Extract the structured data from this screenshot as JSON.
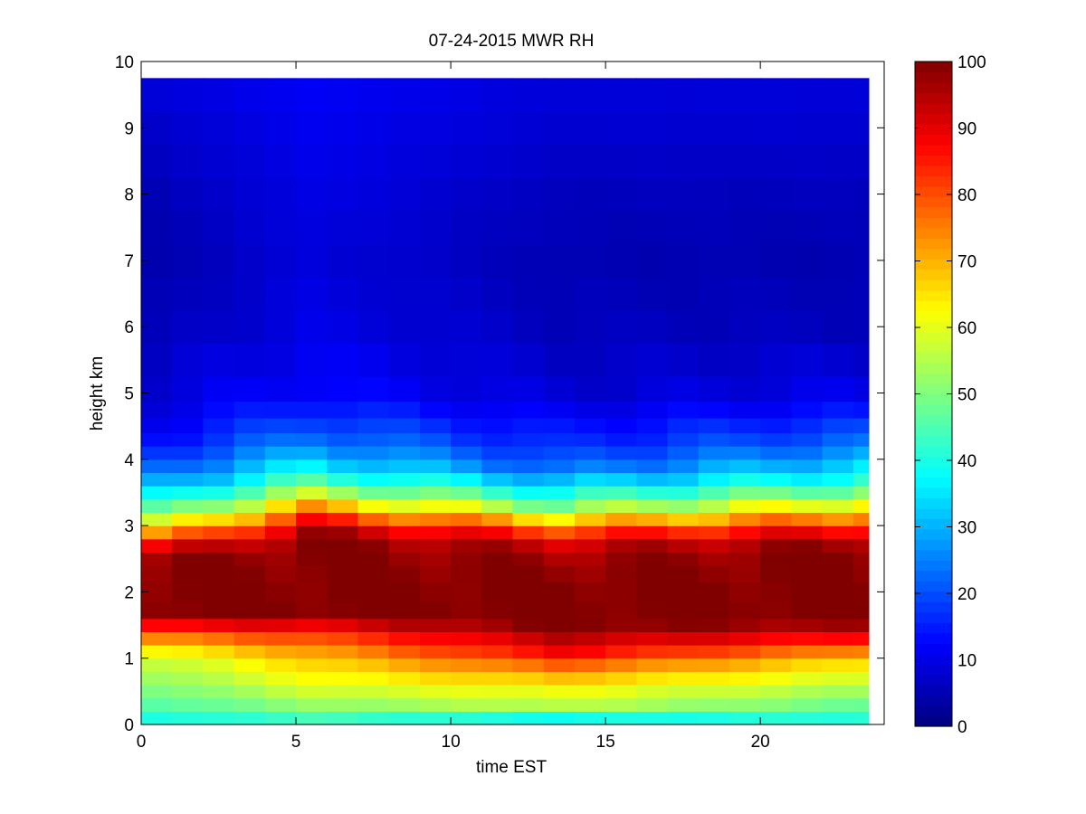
{
  "chart_data": {
    "type": "heatmap",
    "title": "07-24-2015 MWR RH",
    "xlabel": "time EST",
    "ylabel": "height km",
    "xlim": [
      0,
      24
    ],
    "ylim": [
      0,
      10
    ],
    "x_ticks": [
      0,
      5,
      10,
      15,
      20
    ],
    "y_ticks": [
      0,
      1,
      2,
      3,
      4,
      5,
      6,
      7,
      8,
      9,
      10
    ],
    "colorbar": {
      "colormap": "jet",
      "range": [
        0,
        100
      ],
      "ticks": [
        0,
        10,
        20,
        30,
        40,
        50,
        60,
        70,
        80,
        90,
        100
      ]
    },
    "time_start": 0,
    "time_end": 23.5,
    "height_top": 9.75,
    "time_columns": [
      0.5,
      1.5,
      2.5,
      3.5,
      4.5,
      5.5,
      6.5,
      7.5,
      8.5,
      9.5,
      10.5,
      11.5,
      12.5,
      13.5,
      14.5,
      15.5,
      16.5,
      17.5,
      18.5,
      19.5,
      20.5,
      21.5,
      22.5,
      23.5
    ],
    "height_rows_km": [
      0.1,
      0.3,
      0.5,
      0.7,
      0.9,
      1.1,
      1.3,
      1.5,
      1.7,
      2.0,
      2.3,
      2.5,
      2.7,
      2.9,
      3.1,
      3.3,
      3.5,
      3.7,
      3.9,
      4.1,
      4.3,
      4.5,
      4.75,
      5.0,
      5.5,
      6.0,
      6.5,
      7.0,
      7.5,
      8.0,
      8.5,
      9.0,
      9.5
    ],
    "profile_anchors": {
      "heights": [
        0.05,
        0.3,
        0.6,
        0.9,
        1.1,
        1.3,
        1.5,
        1.7,
        2.2,
        2.6,
        2.8,
        3.0,
        3.3,
        3.6,
        3.9,
        4.2,
        4.6,
        5.0,
        6.0,
        7.0,
        8.0,
        9.0,
        9.75
      ],
      "rh_night": [
        38,
        45,
        50,
        55,
        62,
        74,
        88,
        100,
        100,
        96,
        78,
        58,
        40,
        28,
        20,
        14,
        10,
        8,
        5,
        4,
        5,
        7,
        9
      ],
      "rh_morning": [
        42,
        52,
        60,
        66,
        72,
        80,
        90,
        100,
        100,
        100,
        100,
        92,
        70,
        48,
        36,
        26,
        18,
        13,
        10,
        9,
        10,
        11,
        12
      ],
      "rh_afternoon": [
        35,
        56,
        64,
        78,
        88,
        94,
        100,
        100,
        100,
        96,
        90,
        74,
        50,
        34,
        22,
        16,
        12,
        8,
        6,
        5,
        6,
        8,
        9
      ],
      "rh_evening": [
        40,
        48,
        56,
        64,
        74,
        86,
        96,
        100,
        100,
        100,
        96,
        84,
        64,
        44,
        34,
        24,
        16,
        10,
        6,
        5,
        6,
        8,
        9
      ]
    }
  }
}
